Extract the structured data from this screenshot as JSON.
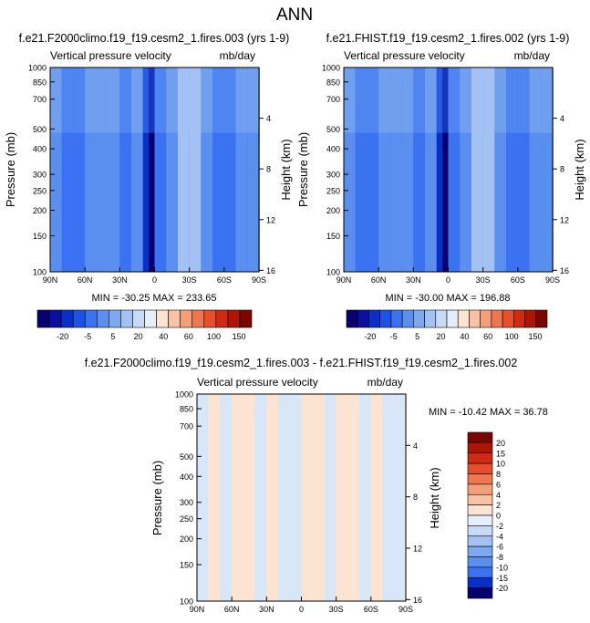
{
  "page_title": "ANN",
  "colors": {
    "neg": [
      "#08006e",
      "#0b0f9e",
      "#0a2fc7",
      "#1c52e6",
      "#3a72f2",
      "#5a8ff0",
      "#7ea8ef",
      "#a3c1f2",
      "#c7dbf7"
    ],
    "near_zero": "#e6eef9",
    "pos": [
      "#fde3d2",
      "#f8c3a4",
      "#f39f7a",
      "#ee7650",
      "#e64e2c",
      "#d02a12",
      "#ad1606",
      "#7a0602"
    ],
    "frame": "#000000"
  },
  "chart_data": [
    {
      "type": "heatmap",
      "title": "f.e21.F2000climo.f19_f19.cesm2_1.fires.003 (yrs 1-9)",
      "left_label": "Vertical pressure velocity",
      "right_label": "mb/day",
      "ylabel": "Pressure (mb)",
      "y2label": "Height (km)",
      "x_ticks": [
        "90N",
        "60N",
        "30N",
        "0",
        "30S",
        "60S",
        "90S"
      ],
      "y_ticks": [
        "100",
        "150",
        "200",
        "250",
        "300",
        "400",
        "500",
        "700",
        "850",
        "1000"
      ],
      "height_ticks": [
        "16",
        "12",
        "8",
        "4"
      ],
      "min_max": "MIN = -30.25   MAX = 233.65",
      "colorbar_labels": [
        "-20",
        "-5",
        "5",
        "20",
        "40",
        "60",
        "100",
        "150"
      ],
      "columns": [
        {
          "x": 90,
          "v": -9
        },
        {
          "x": 80,
          "v": -10
        },
        {
          "x": 70,
          "v": -11
        },
        {
          "x": 60,
          "v": -8
        },
        {
          "x": 50,
          "v": -7
        },
        {
          "x": 40,
          "v": -9
        },
        {
          "x": 30,
          "v": -12
        },
        {
          "x": 20,
          "v": -8
        },
        {
          "x": 10,
          "v": -22
        },
        {
          "x": 5,
          "v": -30
        },
        {
          "x": 0,
          "v": -13
        },
        {
          "x": -10,
          "v": -6
        },
        {
          "x": -20,
          "v": 4
        },
        {
          "x": -30,
          "v": 2
        },
        {
          "x": -40,
          "v": -6
        },
        {
          "x": -50,
          "v": -10
        },
        {
          "x": -60,
          "v": -14
        },
        {
          "x": -70,
          "v": -8
        },
        {
          "x": -80,
          "v": -6
        },
        {
          "x": -90,
          "v": -4
        }
      ]
    },
    {
      "type": "heatmap",
      "title": "f.e21.FHIST.f19_f19.cesm2_1.fires.002 (yrs 1-9)",
      "left_label": "Vertical pressure velocity",
      "right_label": "mb/day",
      "ylabel": "Pressure (mb)",
      "y2label": "Height (km)",
      "x_ticks": [
        "90N",
        "60N",
        "30N",
        "0",
        "30S",
        "60S",
        "90S"
      ],
      "y_ticks": [
        "100",
        "150",
        "200",
        "250",
        "300",
        "400",
        "500",
        "700",
        "850",
        "1000"
      ],
      "height_ticks": [
        "16",
        "12",
        "8",
        "4"
      ],
      "min_max": "MIN = -30.00   MAX = 196.88",
      "colorbar_labels": [
        "-20",
        "-5",
        "5",
        "20",
        "40",
        "60",
        "100",
        "150"
      ],
      "columns": [
        {
          "x": 90,
          "v": -9
        },
        {
          "x": 80,
          "v": -10
        },
        {
          "x": 70,
          "v": -11
        },
        {
          "x": 60,
          "v": -8
        },
        {
          "x": 50,
          "v": -7
        },
        {
          "x": 40,
          "v": -9
        },
        {
          "x": 30,
          "v": -12
        },
        {
          "x": 20,
          "v": -8
        },
        {
          "x": 10,
          "v": -22
        },
        {
          "x": 5,
          "v": -30
        },
        {
          "x": 0,
          "v": -13
        },
        {
          "x": -10,
          "v": -6
        },
        {
          "x": -20,
          "v": 4
        },
        {
          "x": -30,
          "v": 2
        },
        {
          "x": -40,
          "v": -6
        },
        {
          "x": -50,
          "v": -10
        },
        {
          "x": -60,
          "v": -14
        },
        {
          "x": -70,
          "v": -8
        },
        {
          "x": -80,
          "v": -6
        },
        {
          "x": -90,
          "v": -4
        }
      ]
    },
    {
      "type": "heatmap",
      "title": "f.e21.F2000climo.f19_f19.cesm2_1.fires.003 - f.e21.FHIST.f19_f19.cesm2_1.fires.002",
      "left_label": "Vertical pressure velocity",
      "right_label": "mb/day",
      "ylabel": "Pressure (mb)",
      "y2label": "Height (km)",
      "x_ticks": [
        "90N",
        "60N",
        "30N",
        "0",
        "30S",
        "60S",
        "90S"
      ],
      "y_ticks": [
        "100",
        "150",
        "200",
        "250",
        "300",
        "400",
        "500",
        "700",
        "850",
        "1000"
      ],
      "height_ticks": [
        "16",
        "12",
        "8",
        "4"
      ],
      "min_max": "MIN = -10.42   MAX =  36.78",
      "colorbar_labels": [
        "20",
        "15",
        "10",
        "8",
        "6",
        "4",
        "2",
        "0",
        "-2",
        "-4",
        "-6",
        "-8",
        "-10",
        "-15",
        "-20"
      ],
      "columns": [
        {
          "x": 90,
          "v": -1
        },
        {
          "x": 80,
          "v": 1
        },
        {
          "x": 70,
          "v": -1
        },
        {
          "x": 60,
          "v": 1
        },
        {
          "x": 50,
          "v": 1
        },
        {
          "x": 40,
          "v": -1
        },
        {
          "x": 30,
          "v": 1
        },
        {
          "x": 20,
          "v": -1
        },
        {
          "x": 10,
          "v": -1
        },
        {
          "x": 0,
          "v": 1
        },
        {
          "x": -10,
          "v": 1
        },
        {
          "x": -20,
          "v": -1
        },
        {
          "x": -30,
          "v": 1
        },
        {
          "x": -40,
          "v": 1
        },
        {
          "x": -50,
          "v": -1
        },
        {
          "x": -60,
          "v": 1
        },
        {
          "x": -70,
          "v": -1
        },
        {
          "x": -80,
          "v": -1
        },
        {
          "x": -90,
          "v": 1
        }
      ]
    }
  ]
}
